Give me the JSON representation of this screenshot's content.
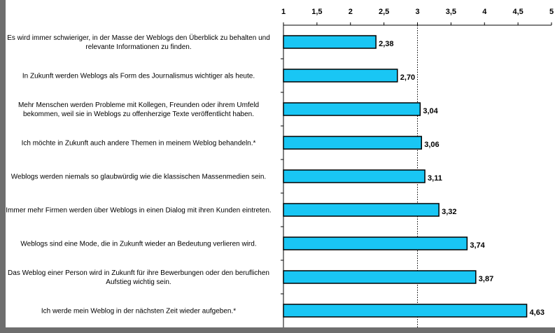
{
  "chart_data": {
    "type": "bar",
    "orientation": "horizontal",
    "categories": [
      "Es wird immer schwieriger, in der Masse der Weblogs den Überblick zu behalten und relevante Informationen zu finden.",
      "In Zukunft werden Weblogs als Form des Journalismus wichtiger als heute.",
      "Mehr Menschen werden Probleme mit Kollegen, Freunden oder ihrem Umfeld bekommen, weil sie in Weblogs zu offenherzige Texte veröffentlicht haben.",
      "Ich möchte in Zukunft auch andere Themen in meinem Weblog behandeln.*",
      "Weblogs werden niemals so glaubwürdig wie die klassischen Massenmedien sein.",
      "Immer mehr Firmen werden über Weblogs in einen Dialog mit ihren Kunden eintreten.",
      "Weblogs sind eine Mode, die in Zukunft wieder an Bedeutung verlieren wird.",
      "Das Weblog einer Person wird in Zukunft für ihre Bewerbungen oder den beruflichen Aufstieg wichtig sein.",
      "Ich werde mein Weblog in der nächsten Zeit wieder aufgeben.*"
    ],
    "values": [
      2.38,
      2.7,
      3.04,
      3.06,
      3.11,
      3.32,
      3.74,
      3.87,
      4.63
    ],
    "value_labels": [
      "2,38",
      "2,70",
      "3,04",
      "3,06",
      "3,11",
      "3,32",
      "3,74",
      "3,87",
      "4,63"
    ],
    "color": "#19c6f4",
    "xlim": [
      1,
      5
    ],
    "xticks": [
      1,
      {
        "value": 1.5,
        "label": "1,5"
      },
      2,
      {
        "value": 2.5,
        "label": "2,5"
      },
      3,
      {
        "value": 3.5,
        "label": "3,5"
      },
      4,
      {
        "value": 4.5,
        "label": "4,5"
      },
      5
    ],
    "reference_line": 3
  }
}
